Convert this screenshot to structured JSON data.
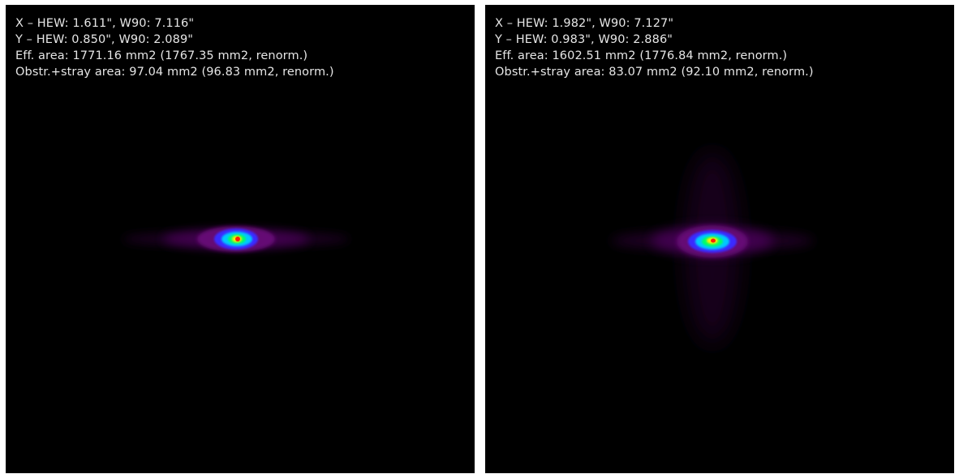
{
  "panels": [
    {
      "x_line": "X – HEW: 1.611\", W90: 7.116\"",
      "y_line": "Y – HEW: 0.850\", W90: 2.089\"",
      "eff_area_line": "Eff. area: 1771.16 mm2 (1767.35 mm2, renorm.)",
      "stray_line": "Obstr.+stray area: 97.04 mm2 (96.83 mm2, renorm.)"
    },
    {
      "x_line": "X – HEW: 1.982\", W90: 7.127\"",
      "y_line": "Y – HEW: 0.983\", W90: 2.886\"",
      "eff_area_line": "Eff. area: 1602.51 mm2 (1776.84 mm2, renorm.)",
      "stray_line": "Obstr.+stray area: 83.07 mm2 (92.10 mm2, renorm.)"
    }
  ],
  "colors": {
    "background": "#000000",
    "text": "#e6e6e6",
    "colormap": [
      "#2a0030",
      "#6a0a7a",
      "#3a2cff",
      "#00c8ff",
      "#00ff66",
      "#ffee00",
      "#ff2200"
    ]
  }
}
